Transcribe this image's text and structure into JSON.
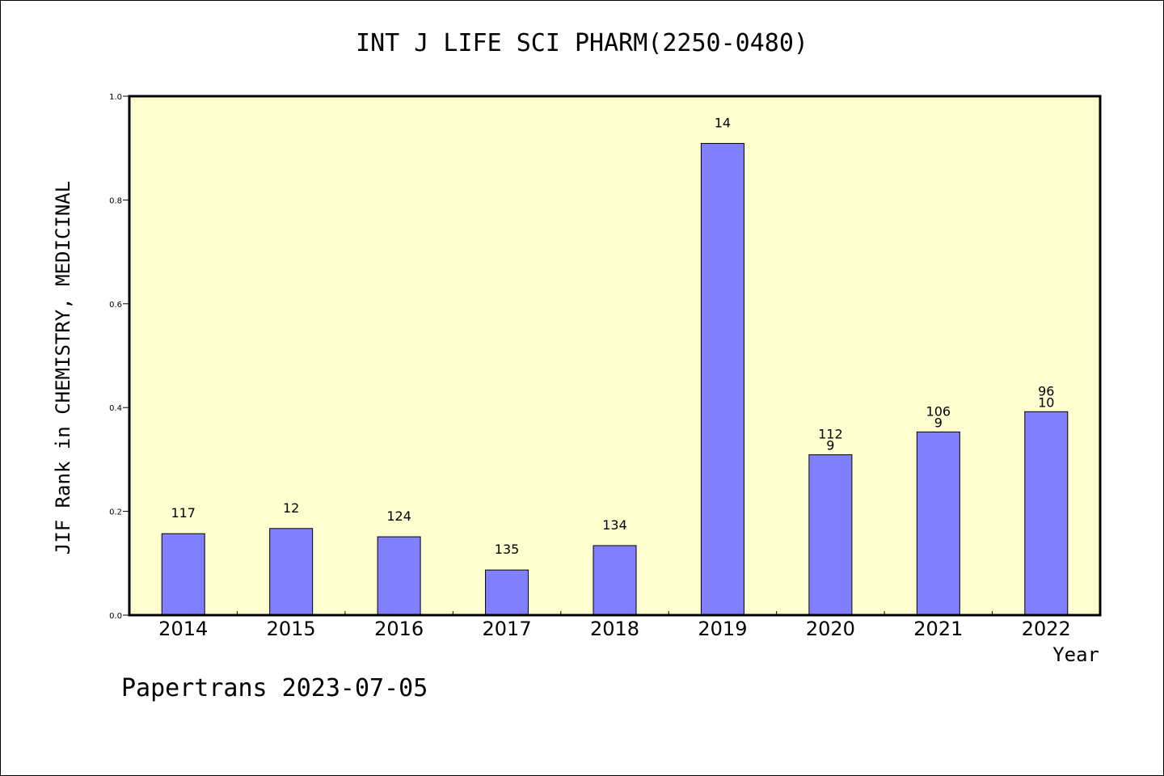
{
  "chart_data": {
    "type": "bar",
    "title": "INT J LIFE SCI PHARM(2250-0480)",
    "xlabel": "Year",
    "ylabel": "JIF Rank in CHEMISTRY, MEDICINAL",
    "ylim": [
      0,
      1.0
    ],
    "yticks": [
      "0.0",
      "0.2",
      "0.4",
      "0.6",
      "0.8",
      "1.0"
    ],
    "categories": [
      "2014",
      "2015",
      "2016",
      "2017",
      "2018",
      "2019",
      "2020",
      "2021",
      "2022"
    ],
    "values": [
      0.157,
      0.167,
      0.151,
      0.087,
      0.134,
      0.909,
      0.309,
      0.353,
      0.392
    ],
    "labels": [
      [
        "117"
      ],
      [
        "12"
      ],
      [
        "124"
      ],
      [
        "135"
      ],
      [
        "134"
      ],
      [
        "14"
      ],
      [
        "112",
        "9"
      ],
      [
        "106",
        "9"
      ],
      [
        "96",
        "10"
      ]
    ],
    "colors": {
      "plot_bg": "#ffffd0",
      "bar": "#8080ff"
    },
    "grid": false,
    "legend": "none"
  },
  "footer": "Papertrans 2023-07-05"
}
